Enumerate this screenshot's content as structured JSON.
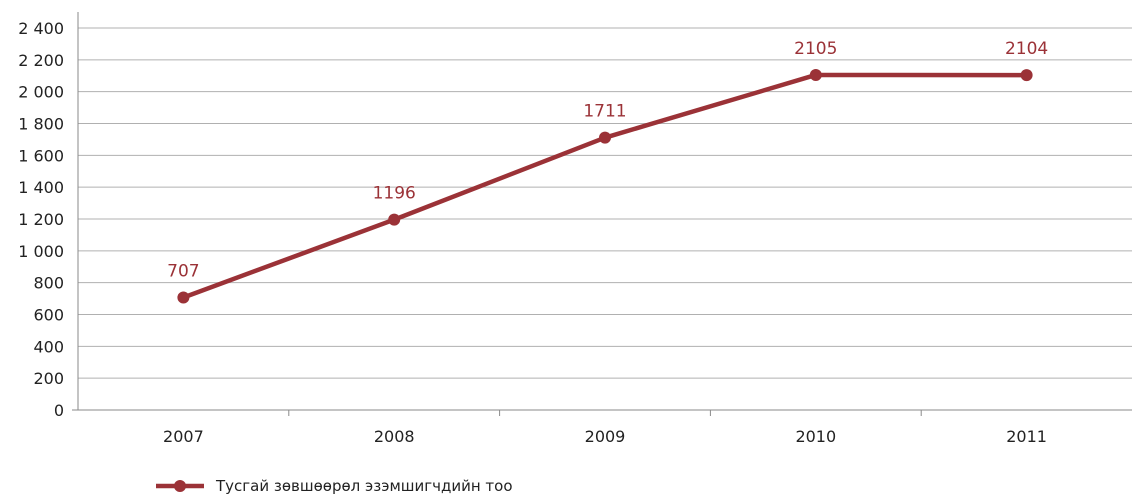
{
  "chart_data": {
    "type": "line",
    "categories": [
      "2007",
      "2008",
      "2009",
      "2010",
      "2011"
    ],
    "series": [
      {
        "name": "Тусгай зөвшөөрөл эзэмшигчдийн тоо",
        "values": [
          707,
          1196,
          1711,
          2105,
          2104
        ],
        "color": "#9b3237"
      }
    ],
    "y_ticks": [
      "0",
      "200",
      "400",
      "600",
      "800",
      "1 000",
      "1 200",
      "1 400",
      "1 600",
      "1 800",
      "2 000",
      "2 200",
      "2 400"
    ],
    "data_labels": [
      "707",
      "1196",
      "1711",
      "2105",
      "2104"
    ],
    "ylim": [
      0,
      2400
    ],
    "grid": "horizontal",
    "legend_position": "bottom-left"
  }
}
